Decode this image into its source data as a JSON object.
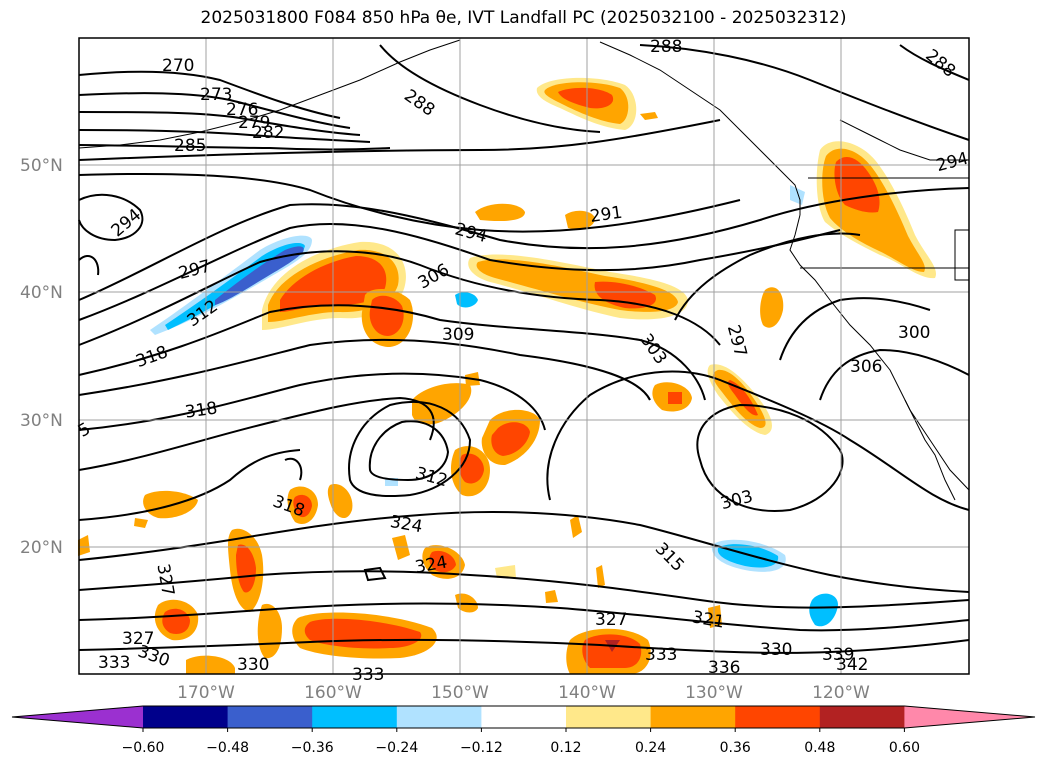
{
  "title": "2025031800 F084 850 hPa θe, IVT Landfall PC (2025032100 - 2025032312)",
  "map": {
    "lat_labels": [
      "50°N",
      "40°N",
      "30°N",
      "20°N"
    ],
    "lon_labels": [
      "170°W",
      "160°W",
      "150°W",
      "140°W",
      "130°W",
      "120°W"
    ],
    "contour_labels": [
      {
        "text": "270"
      },
      {
        "text": "273"
      },
      {
        "text": "276"
      },
      {
        "text": "279"
      },
      {
        "text": "282"
      },
      {
        "text": "285"
      },
      {
        "text": "288"
      },
      {
        "text": "288"
      },
      {
        "text": "288"
      },
      {
        "text": "294"
      },
      {
        "text": "294"
      },
      {
        "text": "294"
      },
      {
        "text": "291"
      },
      {
        "text": "297"
      },
      {
        "text": "297"
      },
      {
        "text": "306"
      },
      {
        "text": "306"
      },
      {
        "text": "309"
      },
      {
        "text": "300"
      },
      {
        "text": "303"
      },
      {
        "text": "303"
      },
      {
        "text": "312"
      },
      {
        "text": "312"
      },
      {
        "text": "318"
      },
      {
        "text": "318"
      },
      {
        "text": "318"
      },
      {
        "text": "315"
      },
      {
        "text": "5"
      },
      {
        "text": "324"
      },
      {
        "text": "324"
      },
      {
        "text": "327"
      },
      {
        "text": "327"
      },
      {
        "text": "327"
      },
      {
        "text": "321"
      },
      {
        "text": "333"
      },
      {
        "text": "330"
      },
      {
        "text": "330"
      },
      {
        "text": "333"
      },
      {
        "text": "333"
      },
      {
        "text": "336"
      },
      {
        "text": "330"
      },
      {
        "text": "339"
      },
      {
        "text": "342"
      }
    ]
  },
  "colorbar": {
    "ticks": [
      "−0.60",
      "−0.48",
      "−0.36",
      "−0.24",
      "−0.12",
      "0.12",
      "0.24",
      "0.36",
      "0.48",
      "0.60"
    ],
    "colors": [
      "#9b30d0",
      "#00008b",
      "#3a5fcd",
      "#00bfff",
      "#b0e2ff",
      "#ffffff",
      "#ffe88a",
      "#ffa500",
      "#ff4500",
      "#b22222",
      "#ff88aa"
    ]
  }
}
